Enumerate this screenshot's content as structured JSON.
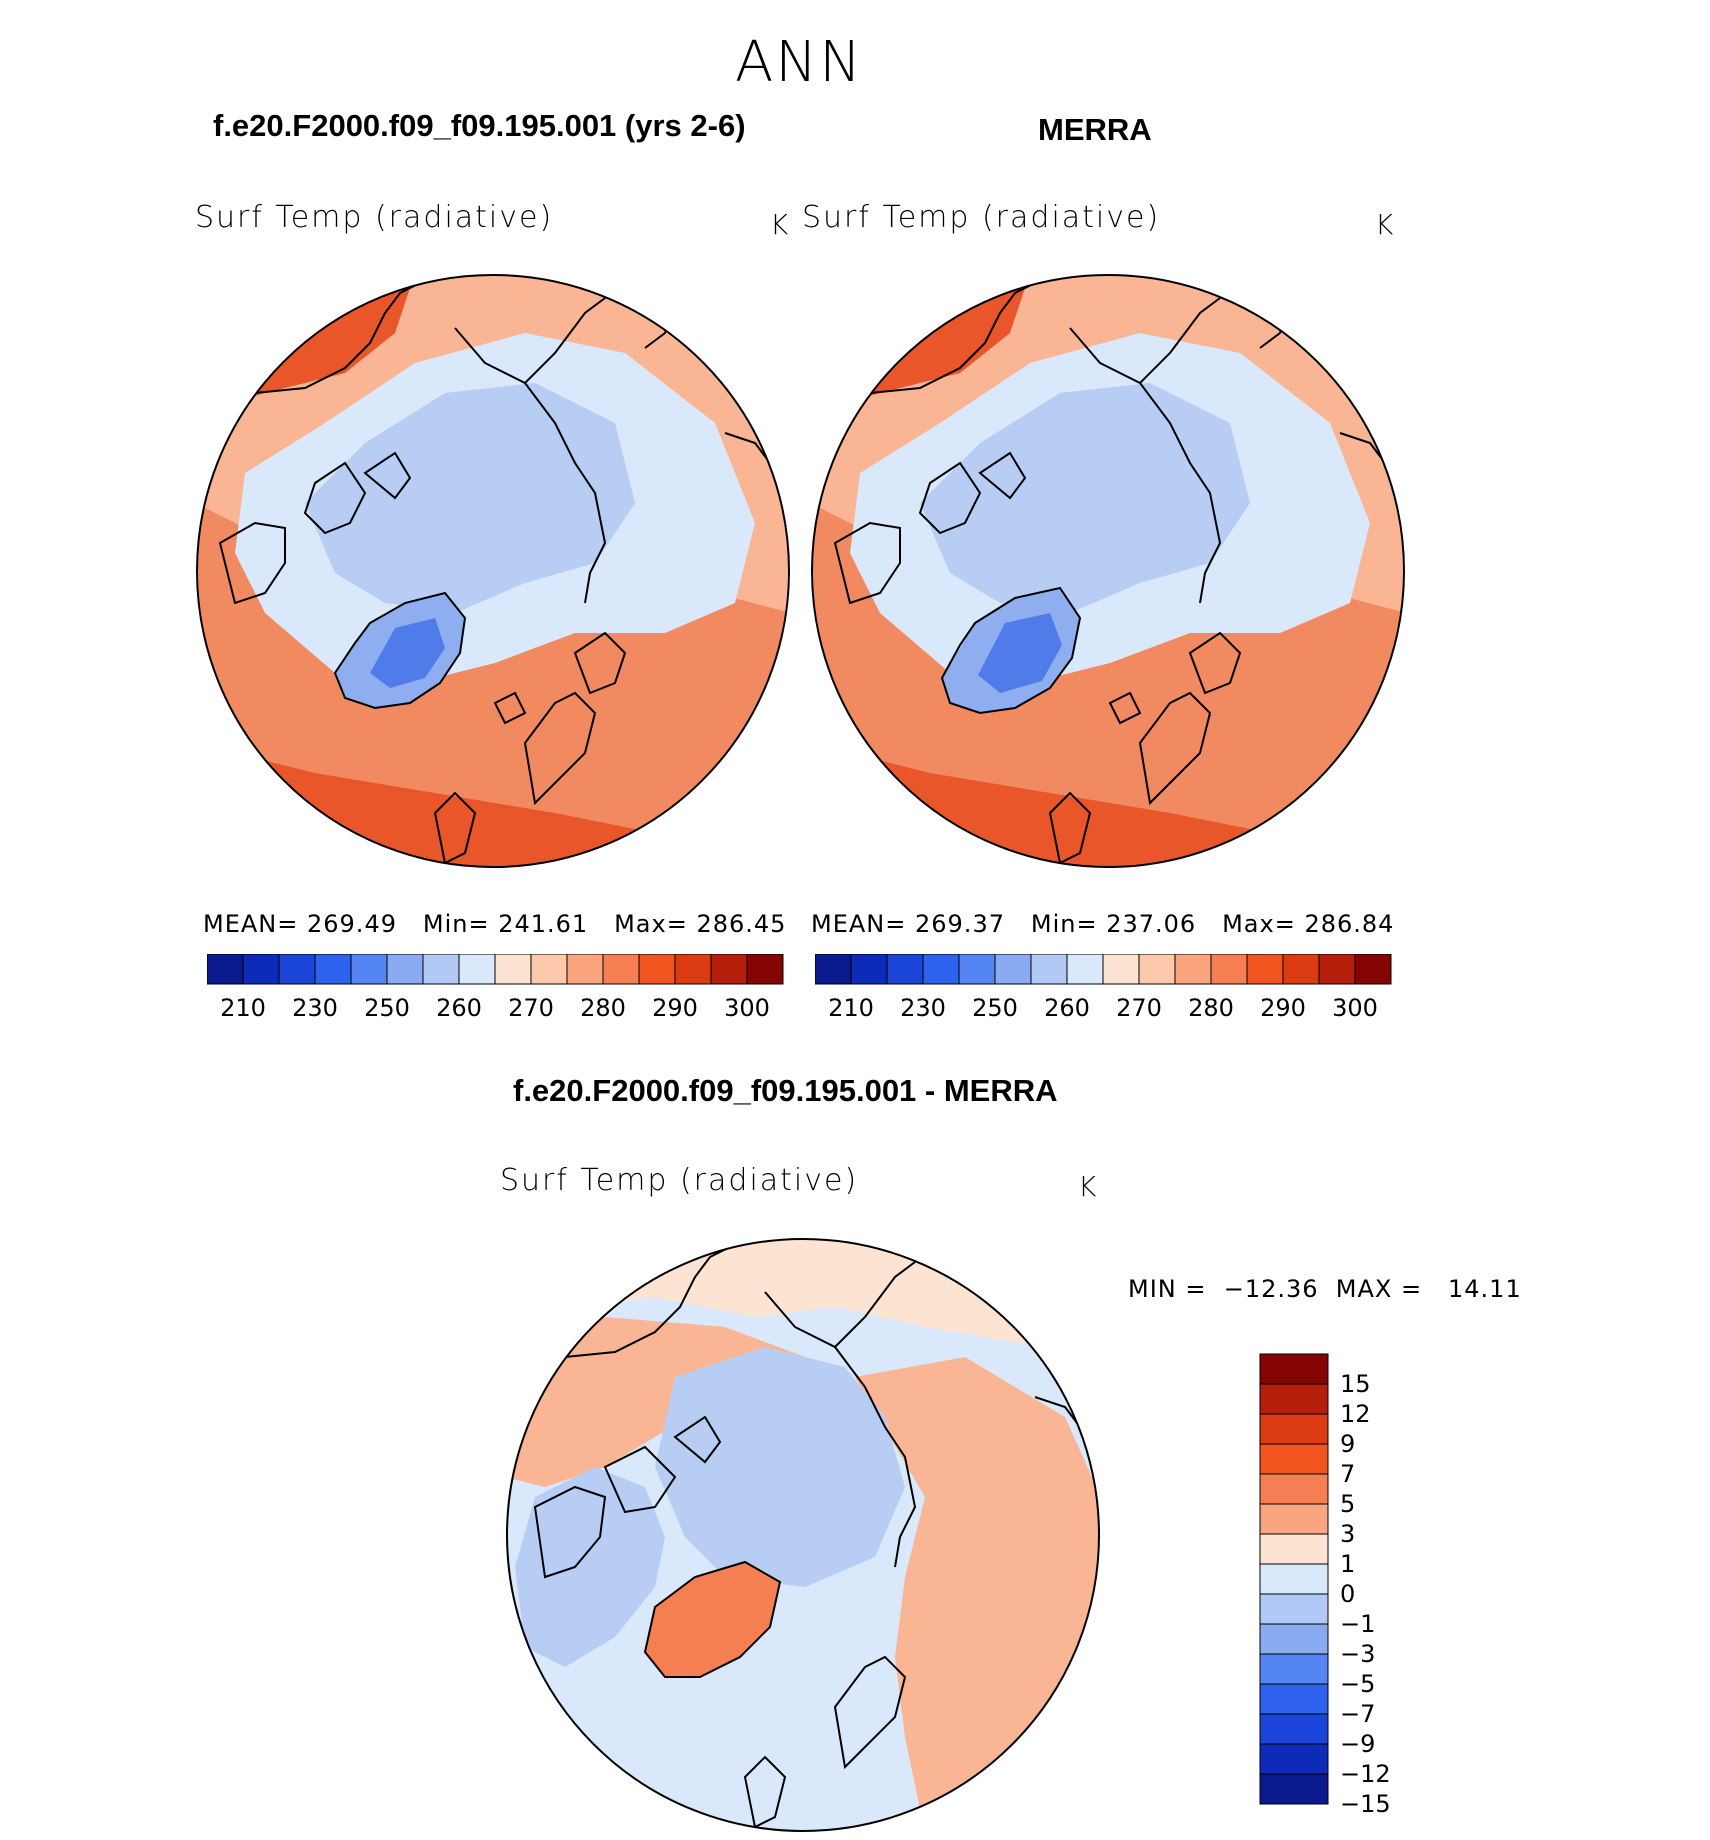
{
  "season": "ANN",
  "panels": [
    {
      "id": "model",
      "case_title": "f.e20.F2000.f09_f09.195.001 (yrs 2-6)",
      "variable": "Surf Temp (radiative)",
      "units": "K",
      "stats": {
        "mean_label": "MEAN=",
        "mean": "269.49",
        "min_label": "Min=",
        "min": "241.61",
        "max_label": "Max=",
        "max": "286.45"
      }
    },
    {
      "id": "obs",
      "case_title": "MERRA",
      "variable": "Surf Temp (radiative)",
      "units": "K",
      "stats": {
        "mean_label": "MEAN=",
        "mean": "269.37",
        "min_label": "Min=",
        "min": "237.06",
        "max_label": "Max=",
        "max": "286.84"
      }
    }
  ],
  "difference": {
    "case_title": "f.e20.F2000.f09_f09.195.001 - MERRA",
    "variable": "Surf Temp (radiative)",
    "units": "K",
    "minmax_text": "MIN =  −12.36  MAX =   14.11"
  },
  "colorbar_abs": {
    "colors": [
      "#0a1a8c",
      "#0d2bb8",
      "#1a45d8",
      "#2e62ee",
      "#5585f2",
      "#8aaaf2",
      "#b3c9f5",
      "#d9e8fa",
      "#fde3d2",
      "#fcc9ad",
      "#f9a680",
      "#f57f52",
      "#f2541f",
      "#dc3a10",
      "#b51e0a",
      "#850505"
    ],
    "tick_labels": [
      "210",
      "230",
      "250",
      "260",
      "270",
      "280",
      "290",
      "300"
    ]
  },
  "colorbar_diff": {
    "colors": [
      "#850505",
      "#b51e0a",
      "#dc3a10",
      "#f2541f",
      "#f57f52",
      "#f9a680",
      "#fde3d2",
      "#d9e8fa",
      "#b3c9f5",
      "#8aaaf2",
      "#5585f2",
      "#2e62ee",
      "#1a45d8",
      "#0d2bb8",
      "#0a1a8c"
    ],
    "tick_labels": [
      "15",
      "12",
      "9",
      "7",
      "5",
      "3",
      "1",
      "0",
      "−1",
      "−3",
      "−5",
      "−7",
      "−9",
      "−12",
      "−15"
    ]
  },
  "map_colors": {
    "deep_warm": "#e8562a",
    "warm": "#f28a61",
    "mild": "#f9b594",
    "cool_pale": "#fbd9c3",
    "ice_pale": "#d9e8fa",
    "ice": "#b8cdf3",
    "ice_mid": "#8eaef0",
    "ice_deep": "#4f7ce8",
    "diff_warm": "#f9b594",
    "diff_pale": "#fde3d2",
    "diff_cold": "#d9e8fa",
    "diff_arctic": "#b8cdf3",
    "diff_greenland": "#f57f52"
  }
}
